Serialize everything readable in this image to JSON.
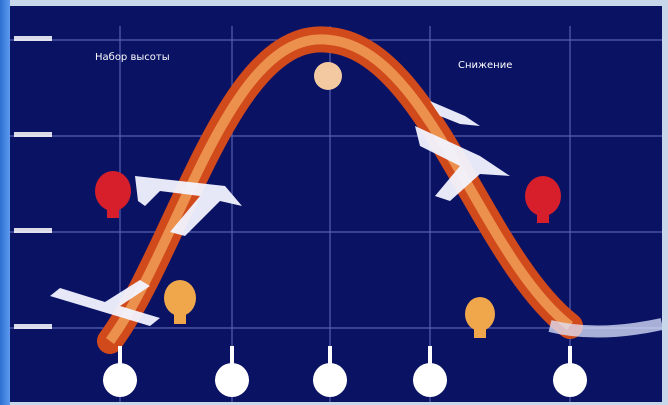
{
  "diagram": {
    "label_climb": "Набор высоты",
    "label_descent": "Снижение",
    "altitude_ticks": [
      "",
      "",
      "",
      ""
    ],
    "colors": {
      "background": "#0a1264",
      "grid": "#6f78c9",
      "curve_outer": "#d14a1c",
      "curve_inner": "#f3a35a",
      "plane": "#f2f4ff",
      "marker_red": "#d61f2b",
      "marker_orange": "#f0a64a",
      "marker_beige": "#f2c9a0",
      "bottom_circle": "#ffffff"
    },
    "icons": [
      "airplane-icon",
      "parachute-marker-icon",
      "clock-icon"
    ]
  }
}
